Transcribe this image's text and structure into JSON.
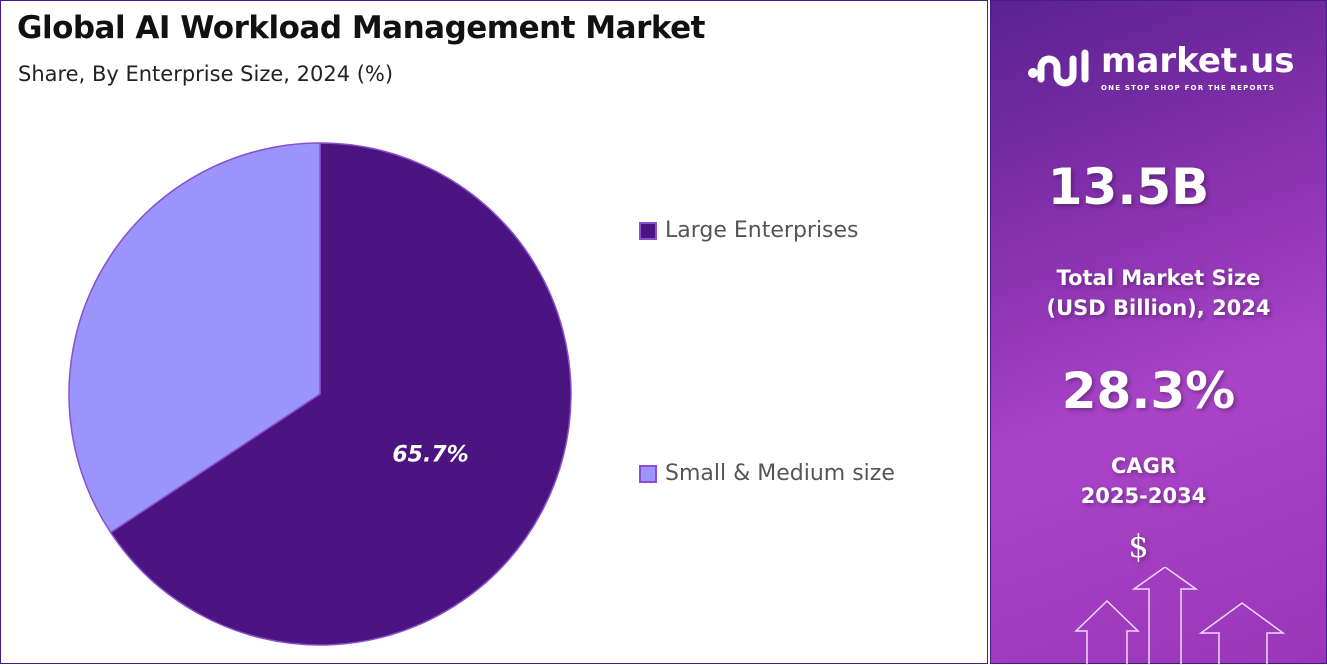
{
  "header": {
    "title": "Global AI Workload Management Market",
    "subtitle": "Share, By Enterprise Size, 2024 (%)"
  },
  "chart_data": {
    "type": "pie",
    "title": "Global AI Workload Management Market",
    "subtitle": "Share, By Enterprise Size, 2024 (%)",
    "categories": [
      "Large Enterprises",
      "Small & Medium size"
    ],
    "values": [
      65.7,
      34.3
    ],
    "colors": [
      "#4b1480",
      "#9a94fc"
    ],
    "data_labels": [
      "65.7%",
      ""
    ],
    "legend_position": "right"
  },
  "sidebar": {
    "logo_name": "market.us",
    "logo_tagline": "ONE STOP SHOP FOR THE REPORTS",
    "market_size": "13.5B",
    "market_size_label_1": "Total Market Size",
    "market_size_label_2": "(USD Billion), 2024",
    "cagr": "28.3%",
    "cagr_label_1": "CAGR",
    "cagr_label_2": "2025-2034",
    "dollar_symbol": "$"
  }
}
